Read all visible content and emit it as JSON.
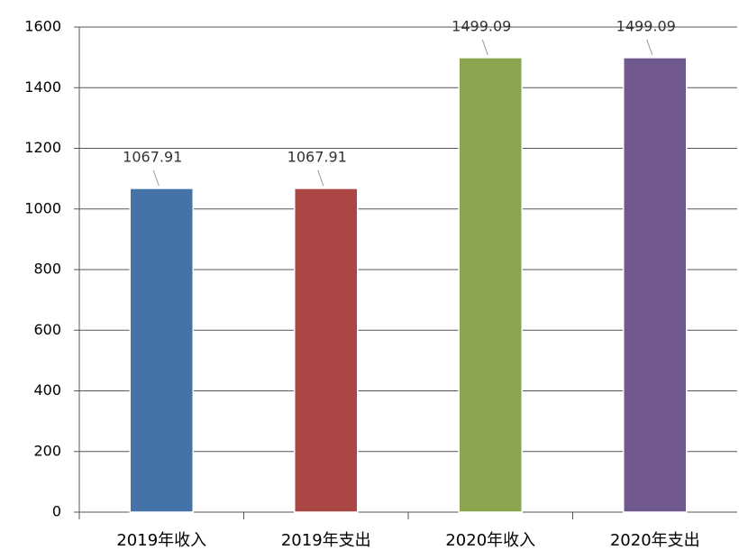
{
  "chart_data": {
    "type": "bar",
    "categories": [
      "2019年收入",
      "2019年支出",
      "2020年收入",
      "2020年支出"
    ],
    "values": [
      1067.91,
      1067.91,
      1499.09,
      1499.09
    ],
    "colors": [
      "#4572a7",
      "#aa4643",
      "#89a54e",
      "#71588f"
    ],
    "ylim": [
      0,
      1600
    ],
    "yticks": [
      0,
      200,
      400,
      600,
      800,
      1000,
      1200,
      1400,
      1600
    ],
    "grid": true,
    "data_labels": true
  }
}
